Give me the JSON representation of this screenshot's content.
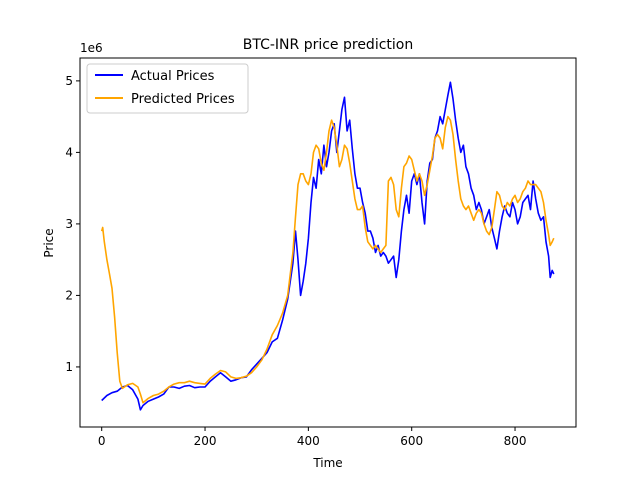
{
  "chart_data": {
    "type": "line",
    "title": "BTC-INR price prediction",
    "xlabel": "Time",
    "ylabel": "Price",
    "y_multiplier_label": "1e6",
    "xlim": [
      -42,
      918
    ],
    "ylim": [
      0.16,
      5.32
    ],
    "y_scale_factor": 1000000,
    "x_ticks": [
      0,
      200,
      400,
      600,
      800
    ],
    "x_tick_labels": [
      "0",
      "200",
      "400",
      "600",
      "800"
    ],
    "y_ticks": [
      1,
      2,
      3,
      4,
      5
    ],
    "y_tick_labels": [
      "1",
      "2",
      "3",
      "4",
      "5"
    ],
    "grid": false,
    "legend_position": "top-left",
    "series": [
      {
        "name": "Actual Prices",
        "color": "#0000ff",
        "points": [
          [
            0,
            0.53
          ],
          [
            10,
            0.6
          ],
          [
            20,
            0.64
          ],
          [
            30,
            0.66
          ],
          [
            40,
            0.72
          ],
          [
            50,
            0.74
          ],
          [
            60,
            0.68
          ],
          [
            70,
            0.55
          ],
          [
            75,
            0.4
          ],
          [
            80,
            0.46
          ],
          [
            90,
            0.52
          ],
          [
            100,
            0.55
          ],
          [
            110,
            0.58
          ],
          [
            120,
            0.62
          ],
          [
            130,
            0.72
          ],
          [
            140,
            0.72
          ],
          [
            150,
            0.7
          ],
          [
            160,
            0.73
          ],
          [
            170,
            0.74
          ],
          [
            180,
            0.71
          ],
          [
            190,
            0.72
          ],
          [
            200,
            0.72
          ],
          [
            210,
            0.8
          ],
          [
            220,
            0.86
          ],
          [
            230,
            0.92
          ],
          [
            240,
            0.86
          ],
          [
            250,
            0.8
          ],
          [
            260,
            0.82
          ],
          [
            270,
            0.85
          ],
          [
            280,
            0.86
          ],
          [
            290,
            0.96
          ],
          [
            300,
            1.04
          ],
          [
            310,
            1.12
          ],
          [
            320,
            1.2
          ],
          [
            330,
            1.35
          ],
          [
            340,
            1.4
          ],
          [
            350,
            1.65
          ],
          [
            360,
            1.95
          ],
          [
            370,
            2.45
          ],
          [
            375,
            2.9
          ],
          [
            380,
            2.5
          ],
          [
            385,
            2.0
          ],
          [
            390,
            2.2
          ],
          [
            395,
            2.45
          ],
          [
            400,
            2.8
          ],
          [
            405,
            3.3
          ],
          [
            410,
            3.65
          ],
          [
            415,
            3.5
          ],
          [
            420,
            3.9
          ],
          [
            425,
            3.7
          ],
          [
            430,
            4.1
          ],
          [
            435,
            3.8
          ],
          [
            440,
            4.0
          ],
          [
            445,
            4.3
          ],
          [
            450,
            4.4
          ],
          [
            455,
            4.0
          ],
          [
            460,
            4.3
          ],
          [
            465,
            4.6
          ],
          [
            470,
            4.77
          ],
          [
            475,
            4.3
          ],
          [
            480,
            4.45
          ],
          [
            485,
            4.05
          ],
          [
            490,
            3.7
          ],
          [
            495,
            3.5
          ],
          [
            500,
            3.5
          ],
          [
            505,
            3.3
          ],
          [
            510,
            3.15
          ],
          [
            515,
            2.9
          ],
          [
            520,
            2.9
          ],
          [
            525,
            2.8
          ],
          [
            530,
            2.6
          ],
          [
            535,
            2.7
          ],
          [
            540,
            2.55
          ],
          [
            545,
            2.6
          ],
          [
            550,
            2.55
          ],
          [
            555,
            2.45
          ],
          [
            560,
            2.5
          ],
          [
            565,
            2.55
          ],
          [
            570,
            2.25
          ],
          [
            575,
            2.5
          ],
          [
            580,
            2.9
          ],
          [
            585,
            3.2
          ],
          [
            590,
            3.4
          ],
          [
            595,
            3.15
          ],
          [
            600,
            3.6
          ],
          [
            605,
            3.7
          ],
          [
            610,
            3.55
          ],
          [
            615,
            3.7
          ],
          [
            620,
            3.3
          ],
          [
            625,
            3.0
          ],
          [
            630,
            3.6
          ],
          [
            635,
            3.85
          ],
          [
            640,
            3.9
          ],
          [
            645,
            4.2
          ],
          [
            650,
            4.3
          ],
          [
            655,
            4.5
          ],
          [
            660,
            4.4
          ],
          [
            665,
            4.6
          ],
          [
            670,
            4.8
          ],
          [
            675,
            4.98
          ],
          [
            680,
            4.75
          ],
          [
            685,
            4.45
          ],
          [
            690,
            4.2
          ],
          [
            695,
            4.0
          ],
          [
            700,
            4.1
          ],
          [
            705,
            3.8
          ],
          [
            710,
            3.7
          ],
          [
            715,
            3.5
          ],
          [
            720,
            3.4
          ],
          [
            725,
            3.2
          ],
          [
            730,
            3.3
          ],
          [
            735,
            3.2
          ],
          [
            740,
            3.0
          ],
          [
            745,
            3.1
          ],
          [
            750,
            3.2
          ],
          [
            755,
            2.95
          ],
          [
            760,
            2.8
          ],
          [
            765,
            2.65
          ],
          [
            770,
            2.9
          ],
          [
            775,
            3.1
          ],
          [
            780,
            3.25
          ],
          [
            785,
            3.15
          ],
          [
            790,
            3.1
          ],
          [
            795,
            3.3
          ],
          [
            800,
            3.2
          ],
          [
            805,
            3.0
          ],
          [
            810,
            3.1
          ],
          [
            815,
            3.3
          ],
          [
            820,
            3.35
          ],
          [
            825,
            3.4
          ],
          [
            830,
            3.2
          ],
          [
            835,
            3.6
          ],
          [
            840,
            3.35
          ],
          [
            845,
            3.15
          ],
          [
            850,
            3.05
          ],
          [
            855,
            3.1
          ],
          [
            860,
            2.75
          ],
          [
            865,
            2.55
          ],
          [
            868,
            2.25
          ],
          [
            872,
            2.35
          ],
          [
            875,
            2.3
          ]
        ]
      },
      {
        "name": "Predicted Prices",
        "color": "#ffa500",
        "points": [
          [
            0,
            2.9
          ],
          [
            2,
            2.95
          ],
          [
            5,
            2.75
          ],
          [
            10,
            2.5
          ],
          [
            15,
            2.3
          ],
          [
            20,
            2.1
          ],
          [
            25,
            1.7
          ],
          [
            30,
            1.2
          ],
          [
            35,
            0.8
          ],
          [
            40,
            0.7
          ],
          [
            50,
            0.75
          ],
          [
            60,
            0.77
          ],
          [
            70,
            0.72
          ],
          [
            75,
            0.62
          ],
          [
            80,
            0.5
          ],
          [
            90,
            0.56
          ],
          [
            100,
            0.6
          ],
          [
            110,
            0.62
          ],
          [
            120,
            0.66
          ],
          [
            130,
            0.72
          ],
          [
            140,
            0.76
          ],
          [
            150,
            0.78
          ],
          [
            160,
            0.78
          ],
          [
            170,
            0.8
          ],
          [
            180,
            0.78
          ],
          [
            190,
            0.77
          ],
          [
            200,
            0.76
          ],
          [
            210,
            0.84
          ],
          [
            220,
            0.9
          ],
          [
            230,
            0.95
          ],
          [
            240,
            0.93
          ],
          [
            250,
            0.86
          ],
          [
            260,
            0.84
          ],
          [
            270,
            0.85
          ],
          [
            280,
            0.87
          ],
          [
            290,
            0.92
          ],
          [
            300,
            1.0
          ],
          [
            310,
            1.1
          ],
          [
            320,
            1.25
          ],
          [
            330,
            1.45
          ],
          [
            340,
            1.58
          ],
          [
            350,
            1.75
          ],
          [
            360,
            2.0
          ],
          [
            370,
            2.6
          ],
          [
            375,
            3.1
          ],
          [
            380,
            3.55
          ],
          [
            385,
            3.7
          ],
          [
            390,
            3.7
          ],
          [
            395,
            3.6
          ],
          [
            400,
            3.55
          ],
          [
            405,
            3.7
          ],
          [
            410,
            4.0
          ],
          [
            415,
            4.1
          ],
          [
            420,
            4.05
          ],
          [
            425,
            3.85
          ],
          [
            430,
            3.75
          ],
          [
            435,
            4.0
          ],
          [
            440,
            4.3
          ],
          [
            445,
            4.45
          ],
          [
            450,
            4.35
          ],
          [
            455,
            4.1
          ],
          [
            460,
            3.8
          ],
          [
            465,
            3.9
          ],
          [
            470,
            4.1
          ],
          [
            475,
            4.05
          ],
          [
            480,
            3.85
          ],
          [
            485,
            3.6
          ],
          [
            490,
            3.35
          ],
          [
            495,
            3.2
          ],
          [
            500,
            3.2
          ],
          [
            505,
            3.25
          ],
          [
            510,
            2.95
          ],
          [
            515,
            2.75
          ],
          [
            520,
            2.7
          ],
          [
            525,
            2.65
          ],
          [
            530,
            2.7
          ],
          [
            535,
            2.65
          ],
          [
            540,
            2.6
          ],
          [
            545,
            2.65
          ],
          [
            550,
            2.7
          ],
          [
            555,
            3.6
          ],
          [
            560,
            3.65
          ],
          [
            565,
            3.55
          ],
          [
            570,
            3.2
          ],
          [
            575,
            3.1
          ],
          [
            580,
            3.5
          ],
          [
            585,
            3.8
          ],
          [
            590,
            3.85
          ],
          [
            595,
            3.95
          ],
          [
            600,
            3.9
          ],
          [
            605,
            3.75
          ],
          [
            610,
            3.6
          ],
          [
            615,
            3.7
          ],
          [
            620,
            3.6
          ],
          [
            625,
            3.4
          ],
          [
            630,
            3.55
          ],
          [
            635,
            3.75
          ],
          [
            640,
            3.95
          ],
          [
            645,
            4.2
          ],
          [
            650,
            4.25
          ],
          [
            655,
            4.2
          ],
          [
            660,
            4.05
          ],
          [
            665,
            4.35
          ],
          [
            670,
            4.5
          ],
          [
            675,
            4.45
          ],
          [
            680,
            4.25
          ],
          [
            685,
            3.9
          ],
          [
            690,
            3.6
          ],
          [
            695,
            3.35
          ],
          [
            700,
            3.25
          ],
          [
            705,
            3.2
          ],
          [
            710,
            3.25
          ],
          [
            715,
            3.15
          ],
          [
            720,
            3.05
          ],
          [
            725,
            3.15
          ],
          [
            730,
            3.2
          ],
          [
            735,
            3.15
          ],
          [
            740,
            3.0
          ],
          [
            745,
            2.9
          ],
          [
            750,
            2.85
          ],
          [
            755,
            2.95
          ],
          [
            760,
            3.2
          ],
          [
            765,
            3.45
          ],
          [
            770,
            3.4
          ],
          [
            775,
            3.25
          ],
          [
            780,
            3.2
          ],
          [
            785,
            3.3
          ],
          [
            790,
            3.25
          ],
          [
            795,
            3.35
          ],
          [
            800,
            3.4
          ],
          [
            805,
            3.3
          ],
          [
            810,
            3.35
          ],
          [
            815,
            3.45
          ],
          [
            820,
            3.5
          ],
          [
            825,
            3.6
          ],
          [
            830,
            3.55
          ],
          [
            835,
            3.55
          ],
          [
            840,
            3.55
          ],
          [
            845,
            3.5
          ],
          [
            850,
            3.45
          ],
          [
            855,
            3.3
          ],
          [
            860,
            3.05
          ],
          [
            865,
            2.85
          ],
          [
            868,
            2.7
          ],
          [
            872,
            2.75
          ],
          [
            875,
            2.8
          ]
        ]
      }
    ]
  }
}
